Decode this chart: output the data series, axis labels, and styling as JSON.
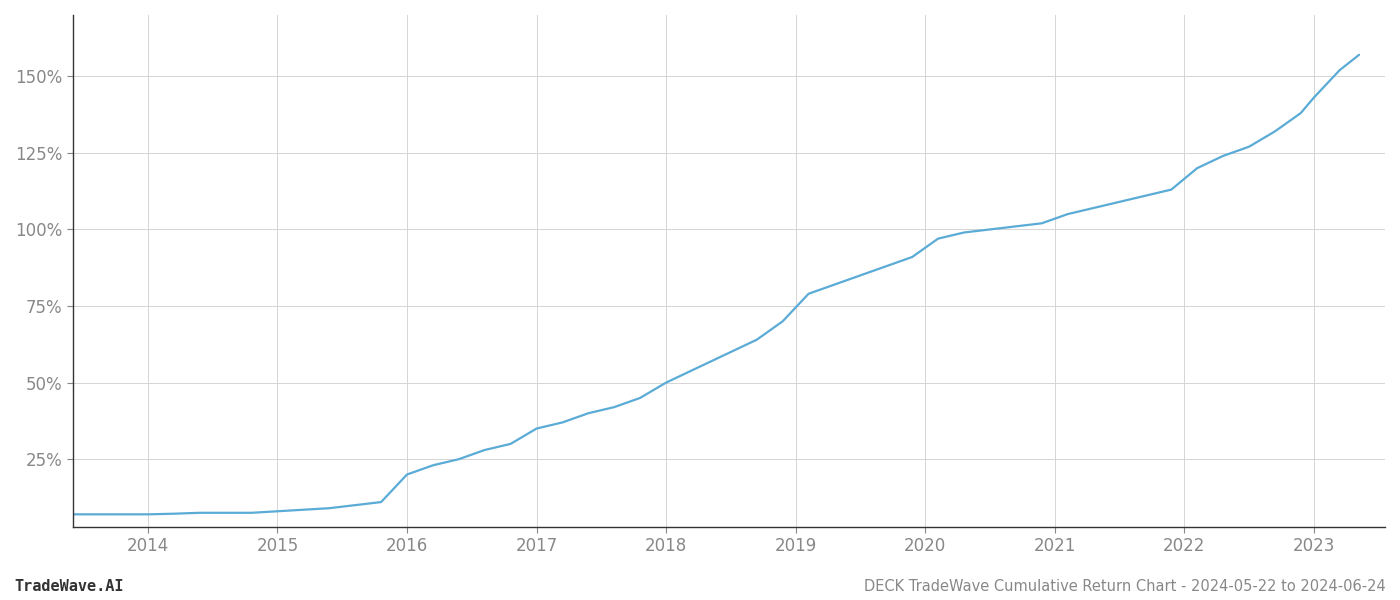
{
  "title": "DECK TradeWave Cumulative Return Chart - 2024-05-22 to 2024-06-24",
  "watermark": "TradeWave.AI",
  "line_color": "#5aabd6",
  "background_color": "#ffffff",
  "grid_color": "#d5d5d5",
  "spine_color": "#333333",
  "axis_label_color": "#888888",
  "x_years": [
    2014,
    2015,
    2016,
    2017,
    2018,
    2019,
    2020,
    2021,
    2022,
    2023
  ],
  "x_data": [
    2013.42,
    2013.55,
    2013.7,
    2013.85,
    2014.0,
    2014.2,
    2014.4,
    2014.6,
    2014.8,
    2015.0,
    2015.2,
    2015.4,
    2015.6,
    2015.8,
    2016.0,
    2016.2,
    2016.4,
    2016.6,
    2016.8,
    2017.0,
    2017.2,
    2017.4,
    2017.6,
    2017.8,
    2018.0,
    2018.15,
    2018.3,
    2018.5,
    2018.7,
    2018.9,
    2019.1,
    2019.3,
    2019.5,
    2019.7,
    2019.9,
    2020.1,
    2020.3,
    2020.5,
    2020.7,
    2020.9,
    2021.1,
    2021.3,
    2021.5,
    2021.7,
    2021.9,
    2022.1,
    2022.3,
    2022.5,
    2022.7,
    2022.9,
    2023.0,
    2023.2,
    2023.35
  ],
  "y_data": [
    7,
    7,
    7,
    7,
    7,
    7.2,
    7.5,
    7.5,
    7.5,
    8,
    8.5,
    9,
    10,
    11,
    20,
    23,
    25,
    28,
    30,
    35,
    37,
    40,
    42,
    45,
    50,
    53,
    56,
    60,
    64,
    70,
    79,
    82,
    85,
    88,
    91,
    97,
    99,
    100,
    101,
    102,
    105,
    107,
    109,
    111,
    113,
    120,
    124,
    127,
    132,
    138,
    143,
    152,
    157
  ],
  "ylim": [
    3,
    170
  ],
  "xlim": [
    2013.42,
    2023.55
  ],
  "yticks": [
    25,
    50,
    75,
    100,
    125,
    150
  ],
  "ytick_labels": [
    "25%",
    "50%",
    "75%",
    "100%",
    "125%",
    "150%"
  ],
  "title_fontsize": 10.5,
  "watermark_fontsize": 11,
  "tick_fontsize": 12,
  "line_width": 1.6
}
